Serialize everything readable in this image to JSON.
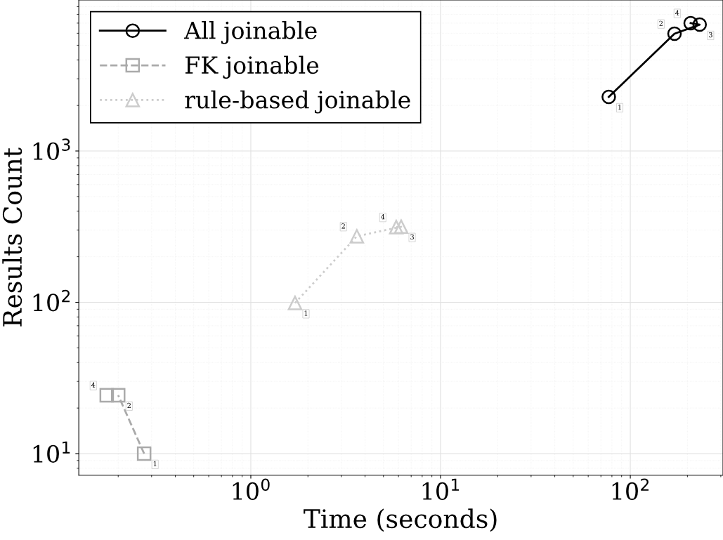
{
  "chart_data": {
    "type": "line",
    "xlabel": "Time (seconds)",
    "ylabel": "Results Count",
    "log": "xy",
    "grid": true,
    "legend": "top left",
    "xlim": [
      0.124,
      308
    ],
    "ylim": [
      7.2,
      9950
    ],
    "xticks": [
      {
        "value": 1,
        "label": "10$^{0}$"
      },
      {
        "value": 10,
        "label": "10$^{1}$"
      },
      {
        "value": 100,
        "label": "10$^{2}$"
      }
    ],
    "yticks": [
      {
        "value": 10,
        "label": "10$^{1}$"
      },
      {
        "value": 100,
        "label": "10$^{2}$"
      },
      {
        "value": 1000,
        "label": "10$^{3}$"
      }
    ],
    "series": [
      {
        "name": "All joinable",
        "color": "#000000",
        "marker": "circle",
        "line_style": "solid",
        "x": [
          77,
          171,
          232,
          208
        ],
        "values": [
          2275,
          5960,
          6840,
          7000
        ]
      },
      {
        "name": "FK joinable",
        "color": "#aaaaaa",
        "marker": "square",
        "line_style": "dashed",
        "x": [
          0.274,
          0.2,
          0.19,
          0.174
        ],
        "values": [
          10,
          24.3,
          null,
          24.3
        ]
      },
      {
        "name": "rule-based joinable",
        "color": "#cccccc",
        "marker": "triangle",
        "line_style": "dotted",
        "x": [
          1.71,
          3.62,
          6.2,
          5.84
        ],
        "values": [
          99,
          273,
          316,
          314
        ]
      }
    ],
    "annotations": [
      {
        "text": "1",
        "x": 77,
        "y": 2275
      },
      {
        "text": "2",
        "x": 171,
        "y": 5960
      },
      {
        "text": "3",
        "x": 232,
        "y": 6840
      },
      {
        "text": "4",
        "x": 208,
        "y": 7000
      },
      {
        "text": "1",
        "x": 0.274,
        "y": 10
      },
      {
        "text": "4",
        "x": 0.174,
        "y": 24.3
      },
      {
        "text": "2",
        "x": 0.2,
        "y": 24.3
      },
      {
        "text": "2",
        "x": 3.62,
        "y": 273
      },
      {
        "text": "1",
        "x": 1.71,
        "y": 99
      },
      {
        "text": "4",
        "x": 5.84,
        "y": 314
      },
      {
        "text": "3",
        "x": 6.2,
        "y": 316
      }
    ]
  }
}
